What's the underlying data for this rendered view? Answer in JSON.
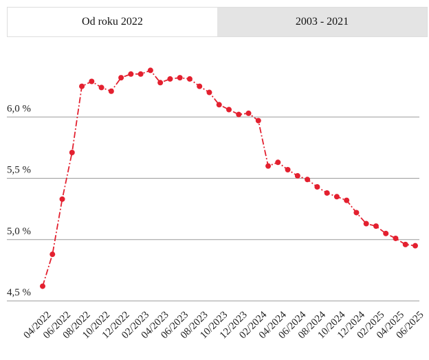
{
  "tabs": [
    "Od roku 2022",
    "2003 - 2021"
  ],
  "chart_data": {
    "type": "line",
    "categories": [
      "04/2022",
      null,
      "06/2022",
      null,
      "08/2022",
      null,
      "10/2022",
      null,
      "12/2022",
      null,
      "02/2023",
      null,
      "04/2023",
      null,
      "06/2023",
      null,
      "08/2023",
      null,
      "10/2023",
      null,
      "12/2023",
      null,
      "02/2024",
      null,
      "04/2024",
      null,
      "06/2024",
      null,
      "08/2024",
      null,
      "10/2024",
      null,
      "12/2024",
      null,
      "02/2025",
      null,
      "04/2025",
      null,
      "06/2025"
    ],
    "values": [
      4.62,
      4.88,
      5.33,
      5.71,
      6.25,
      6.29,
      6.24,
      6.21,
      6.32,
      6.35,
      6.35,
      6.38,
      6.28,
      6.31,
      6.32,
      6.31,
      6.25,
      6.2,
      6.1,
      6.06,
      6.02,
      6.03,
      5.97,
      5.6,
      5.63,
      5.57,
      5.52,
      5.49,
      5.43,
      5.38,
      5.35,
      5.32,
      5.22,
      5.13,
      5.11,
      5.05,
      5.01,
      4.96,
      4.95
    ],
    "color": "#e3202f",
    "ylim": [
      4.5,
      6.5
    ],
    "yticks": [
      {
        "value": 4.5,
        "label": "4,5 %"
      },
      {
        "value": 5.0,
        "label": "5,0 %"
      },
      {
        "value": 5.5,
        "label": "5,5 %"
      },
      {
        "value": 6.0,
        "label": "6,0 %"
      }
    ],
    "grid": true
  }
}
